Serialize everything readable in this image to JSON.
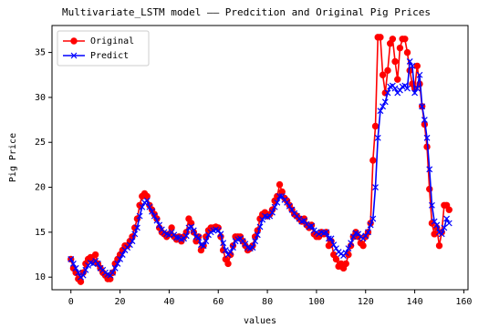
{
  "chart_data": {
    "type": "line",
    "title": "Multivariate_LSTM model —— Predcition and Original Pig Prices",
    "x_label": "values",
    "y_label": "Pig Price",
    "x": [
      0,
      1,
      2,
      3,
      4,
      5,
      6,
      7,
      8,
      9,
      10,
      11,
      12,
      13,
      14,
      15,
      16,
      17,
      18,
      19,
      20,
      21,
      22,
      23,
      24,
      25,
      26,
      27,
      28,
      29,
      30,
      31,
      32,
      33,
      34,
      35,
      36,
      37,
      38,
      39,
      40,
      41,
      42,
      43,
      44,
      45,
      46,
      47,
      48,
      49,
      50,
      51,
      52,
      53,
      54,
      55,
      56,
      57,
      58,
      59,
      60,
      61,
      62,
      63,
      64,
      65,
      66,
      67,
      68,
      69,
      70,
      71,
      72,
      73,
      74,
      75,
      76,
      77,
      78,
      79,
      80,
      81,
      82,
      83,
      84,
      85,
      86,
      87,
      88,
      89,
      90,
      91,
      92,
      93,
      94,
      95,
      96,
      97,
      98,
      99,
      100,
      101,
      102,
      103,
      104,
      105,
      106,
      107,
      108,
      109,
      110,
      111,
      112,
      113,
      114,
      115,
      116,
      117,
      118,
      119,
      120,
      121,
      122,
      123,
      124,
      125,
      126,
      127,
      128,
      129,
      130,
      131,
      132,
      133,
      134,
      135,
      136,
      137,
      138,
      139,
      140,
      141,
      142,
      143,
      144,
      145,
      146,
      147,
      148,
      149,
      150,
      151,
      152,
      153,
      154
    ],
    "series": [
      {
        "name": "Original",
        "color": "#ff0000",
        "marker": "o",
        "values": [
          12,
          11,
          10.5,
          9.8,
          9.5,
          10.5,
          11.5,
          12,
          12.2,
          11.8,
          12.5,
          11.5,
          11,
          10.5,
          10.2,
          9.8,
          9.8,
          10.5,
          11.5,
          12,
          12.5,
          13,
          13.5,
          13.5,
          14,
          14.5,
          15.5,
          16.5,
          18,
          19,
          19.3,
          19,
          18,
          17.5,
          17,
          16.5,
          15.5,
          15,
          14.8,
          14.5,
          14.8,
          15.5,
          14.5,
          14.2,
          14.5,
          14,
          14.5,
          15,
          16.5,
          16,
          15,
          14,
          14.5,
          13,
          13.5,
          14.5,
          15.2,
          15.5,
          15.5,
          15.6,
          15.5,
          14.5,
          13,
          12,
          11.5,
          12.5,
          13.5,
          14.5,
          14.5,
          14.5,
          14,
          13.5,
          13,
          13.2,
          13.5,
          14.5,
          15.2,
          16.5,
          17,
          17.2,
          16.8,
          17,
          17.5,
          18.5,
          19,
          20.3,
          19.5,
          18.8,
          18.5,
          18,
          17.5,
          17,
          16.8,
          16.5,
          16.2,
          16.5,
          15.8,
          15.5,
          15.8,
          14.8,
          14.5,
          14.5,
          15,
          14.8,
          15,
          13.5,
          14,
          12.5,
          12,
          11.2,
          11.5,
          11,
          11.5,
          12.5,
          13.5,
          14.5,
          15,
          14.5,
          13.8,
          13.5,
          14.5,
          15,
          16,
          23,
          26.8,
          36.7,
          36.7,
          32.5,
          30.5,
          33,
          36,
          36.5,
          34,
          32,
          35.5,
          36.5,
          36.5,
          35,
          33,
          31.5,
          31,
          33.5,
          31.5,
          29,
          27,
          24.5,
          19.8,
          16,
          14.8,
          15.5,
          13.5,
          15,
          18,
          18,
          17.5
        ]
      },
      {
        "name": "Predict",
        "color": "#0000ff",
        "marker": "x",
        "values": [
          12,
          11.5,
          11,
          10.5,
          10,
          10.2,
          10.8,
          11.3,
          11.6,
          11.5,
          11.8,
          11.5,
          11,
          10.8,
          10.5,
          10.3,
          10.2,
          10.5,
          11,
          11.5,
          12,
          12.5,
          13,
          13.3,
          13.6,
          14,
          14.8,
          15.5,
          16.8,
          17.8,
          18.3,
          18.5,
          17.8,
          17.3,
          16.8,
          16.3,
          15.8,
          15.3,
          15,
          14.8,
          14.7,
          15,
          14.7,
          14.4,
          14.4,
          14.2,
          14.3,
          14.6,
          15.5,
          15.6,
          15.2,
          14.5,
          14.4,
          13.6,
          13.5,
          14,
          14.7,
          15,
          15.2,
          15.3,
          15.2,
          14.8,
          13.8,
          13,
          12.5,
          12.8,
          13.3,
          14,
          14.2,
          14.3,
          14,
          13.7,
          13.3,
          13.2,
          13.3,
          14,
          14.7,
          15.6,
          16.4,
          16.8,
          16.7,
          16.8,
          17.2,
          17.8,
          18.3,
          19,
          19,
          18.6,
          18.3,
          17.9,
          17.5,
          17.1,
          16.8,
          16.5,
          16.2,
          16.3,
          15.9,
          15.6,
          15.7,
          15.2,
          15,
          14.8,
          15,
          14.9,
          15,
          14.3,
          14.3,
          13.6,
          13.2,
          12.8,
          12.6,
          12.4,
          12.7,
          13.2,
          13.8,
          14.5,
          14.9,
          14.8,
          14.5,
          14.3,
          14.6,
          15,
          15.8,
          16.5,
          20,
          25.5,
          28.5,
          29,
          29.5,
          30.5,
          31.2,
          31.3,
          31,
          30.5,
          30.8,
          31.2,
          31.3,
          31,
          34,
          33.5,
          30.5,
          31,
          32.5,
          29,
          27.5,
          25.5,
          22,
          18,
          16.2,
          15.8,
          15,
          14.8,
          15.5,
          16.5,
          16
        ]
      }
    ],
    "xlim": [
      -7.7,
      161.7
    ],
    "xticks": [
      0,
      20,
      40,
      60,
      80,
      100,
      120,
      140,
      160
    ],
    "ylim": [
      8.6,
      38.0
    ],
    "yticks": [
      10,
      15,
      20,
      25,
      30,
      35
    ],
    "legend": "upper left",
    "grid": false
  }
}
